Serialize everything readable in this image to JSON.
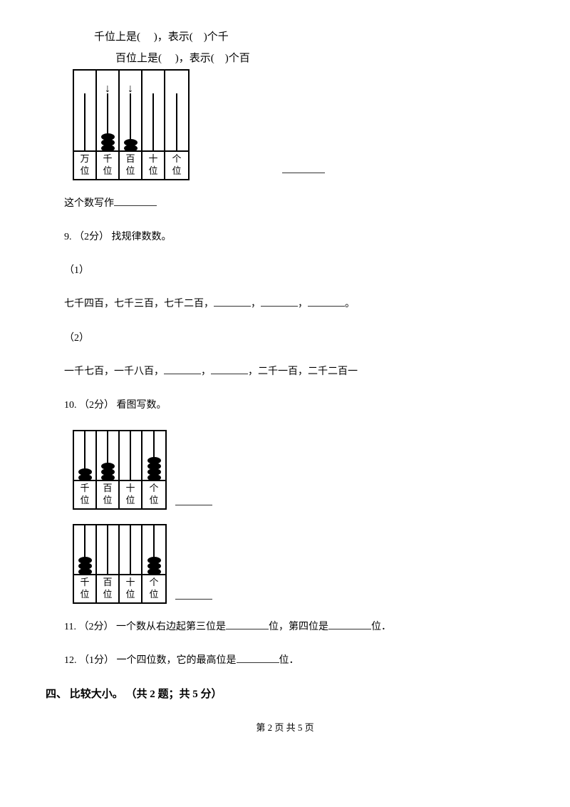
{
  "annot": {
    "line1": "千位上是(　 )，表示(　)个千",
    "line2": "百位上是(　 )，表示(　)个百"
  },
  "abacus_top": {
    "rod_height": 80,
    "arrow_height": 34,
    "cols": [
      {
        "label1": "万",
        "label2": "位",
        "beads": 0,
        "arrow": false
      },
      {
        "label1": "千",
        "label2": "位",
        "beads": 3,
        "arrow": true
      },
      {
        "label1": "百",
        "label2": "位",
        "beads": 2,
        "arrow": true
      },
      {
        "label1": "十",
        "label2": "位",
        "beads": 0,
        "arrow": false
      },
      {
        "label1": "个",
        "label2": "位",
        "beads": 0,
        "arrow": false
      }
    ]
  },
  "q8_tail": "这个数写作",
  "q9": {
    "header": "9. （2分） 找规律数数。",
    "part1_label": "（1）",
    "part1_text_a": "七千四百，七千三百，七千二百，",
    "part1_text_b": "，",
    "part1_text_c": "，",
    "part1_text_d": "。",
    "part2_label": "（2）",
    "part2_text_a": "一千七百，一千八百，",
    "part2_text_b": "，",
    "part2_text_c": "，二千一百，二千二百一"
  },
  "q10": {
    "header": "10. （2分） 看图写数。",
    "abacus_a": {
      "rod_height": 70,
      "cols": [
        {
          "label1": "千",
          "label2": "位",
          "beads": 2
        },
        {
          "label1": "百",
          "label2": "位",
          "beads": 3
        },
        {
          "label1": "十",
          "label2": "位",
          "beads": 0
        },
        {
          "label1": "个",
          "label2": "位",
          "beads": 4
        }
      ]
    },
    "abacus_b": {
      "rod_height": 70,
      "cols": [
        {
          "label1": "千",
          "label2": "位",
          "beads": 3
        },
        {
          "label1": "百",
          "label2": "位",
          "beads": 0
        },
        {
          "label1": "十",
          "label2": "位",
          "beads": 0
        },
        {
          "label1": "个",
          "label2": "位",
          "beads": 3
        }
      ]
    }
  },
  "q11": {
    "a": "11. （2分） 一个数从右边起第三位是",
    "b": "位，第四位是",
    "c": "位．"
  },
  "q12": {
    "a": "12. （1分） 一个四位数，它的最高位是",
    "b": "位．"
  },
  "section4": "四、 比较大小。 （共 2 题；共 5 分）",
  "footer": "第 2 页 共 5 页"
}
